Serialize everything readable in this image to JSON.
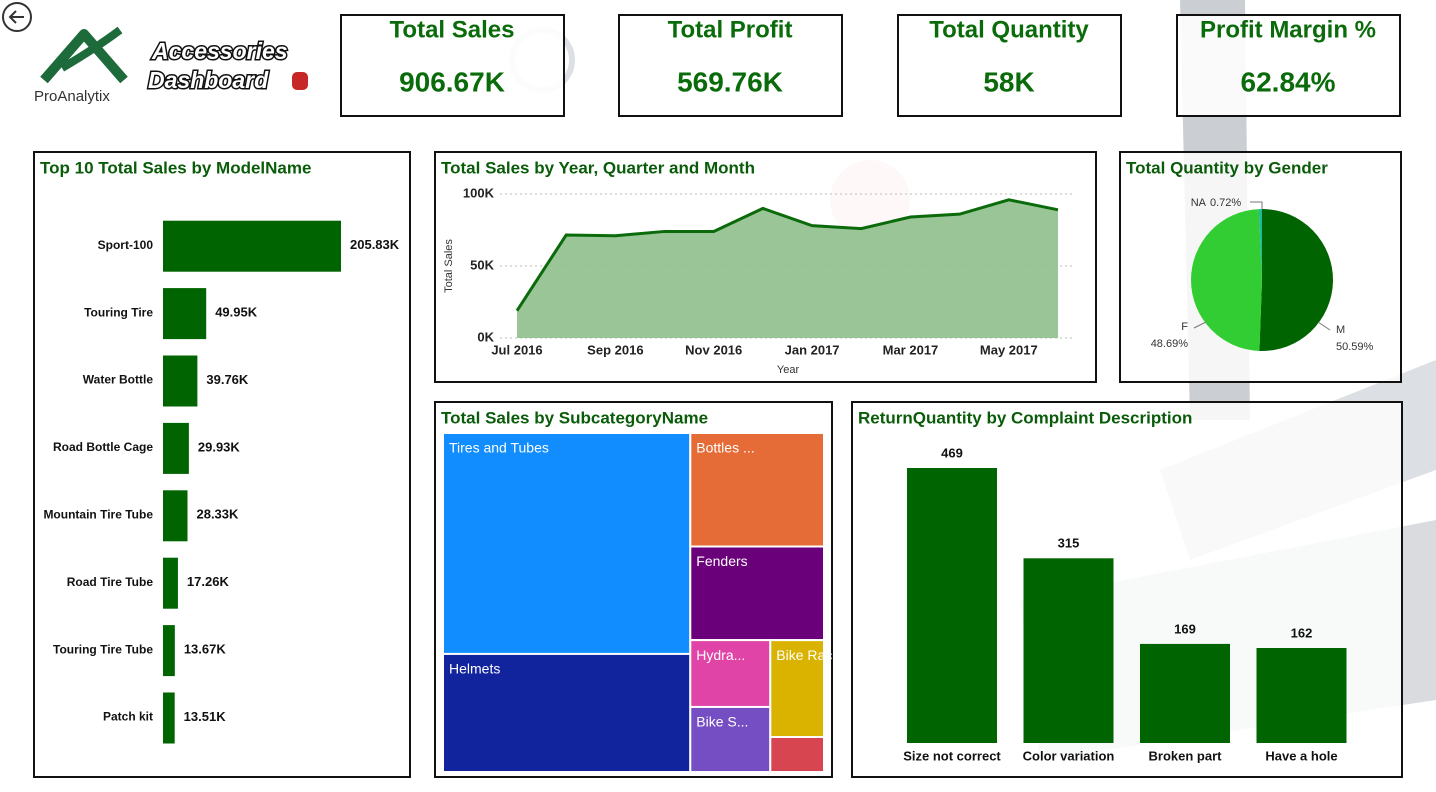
{
  "header": {
    "logo_text": "ProAnalytix",
    "title": [
      "Accessories",
      "Dashboard"
    ]
  },
  "kpis": [
    {
      "label": "Total Sales",
      "value": "906.67K"
    },
    {
      "label": "Total Profit",
      "value": "569.76K"
    },
    {
      "label": "Total Quantity",
      "value": "58K"
    },
    {
      "label": "Profit Margin %",
      "value": "62.84%"
    }
  ],
  "chart_data": [
    {
      "type": "bar",
      "orientation": "horizontal",
      "title": "Top 10 Total Sales by ModelName",
      "categories": [
        "Sport-100",
        "Touring Tire",
        "Water Bottle",
        "Road Bottle Cage",
        "Mountain Tire Tube",
        "Road Tire Tube",
        "Touring Tire Tube",
        "Patch kit"
      ],
      "values": [
        205830,
        49950,
        39760,
        29930,
        28330,
        17260,
        13670,
        13510
      ],
      "value_labels": [
        "205.83K",
        "49.95K",
        "39.76K",
        "29.93K",
        "28.33K",
        "17.26K",
        "13.67K",
        "13.51K"
      ],
      "color": "#006400"
    },
    {
      "type": "area",
      "title": "Total Sales by Year, Quarter and Month",
      "categories": [
        "Jul 2016",
        null,
        "Sep 2016",
        null,
        "Nov 2016",
        null,
        "Jan 2017",
        null,
        "Mar 2017",
        null,
        "May 2017",
        null
      ],
      "values": [
        19000,
        71500,
        71000,
        74000,
        74000,
        90000,
        78000,
        76000,
        84000,
        86000,
        96000,
        89000
      ],
      "ylim": [
        0,
        100000
      ],
      "yticks": [
        {
          "value": 0,
          "label": "0K"
        },
        {
          "value": 50000,
          "label": "50K"
        },
        {
          "value": 100000,
          "label": "100K"
        }
      ],
      "x_label": "Year",
      "y_label": "Total Sales",
      "grid": true,
      "color": "#0b6b0b",
      "fill": "#8fbf8c"
    },
    {
      "type": "pie",
      "title": "Total Quantity by Gender",
      "categories": [
        "M",
        "F",
        "NA"
      ],
      "values": [
        50.59,
        48.69,
        0.72
      ],
      "value_labels": [
        "50.59%",
        "48.69%",
        "0.72%"
      ],
      "colors": [
        "#006400",
        "#32cd32",
        "#1fb8a0"
      ]
    },
    {
      "type": "treemap",
      "title": "Total Sales by SubcategoryName",
      "categories": [
        "Tires and Tubes",
        "Helmets",
        "Bottles ...",
        "Fenders",
        "Hydra...",
        "Bike S...",
        "Bike Racks",
        null
      ],
      "values": [
        378000,
        202000,
        105000,
        86600,
        37000,
        36000,
        36000,
        13000
      ],
      "colors": [
        "#118dff",
        "#12239e",
        "#e66c37",
        "#6b007b",
        "#e044a7",
        "#744ec2",
        "#d9b300",
        "#d64550"
      ]
    },
    {
      "type": "bar",
      "orientation": "vertical",
      "title": "ReturnQuantity by Complaint Description",
      "categories": [
        "Size not correct",
        "Color variation",
        "Broken part",
        "Have a hole"
      ],
      "values": [
        469,
        315,
        169,
        162
      ],
      "color": "#006400"
    }
  ]
}
